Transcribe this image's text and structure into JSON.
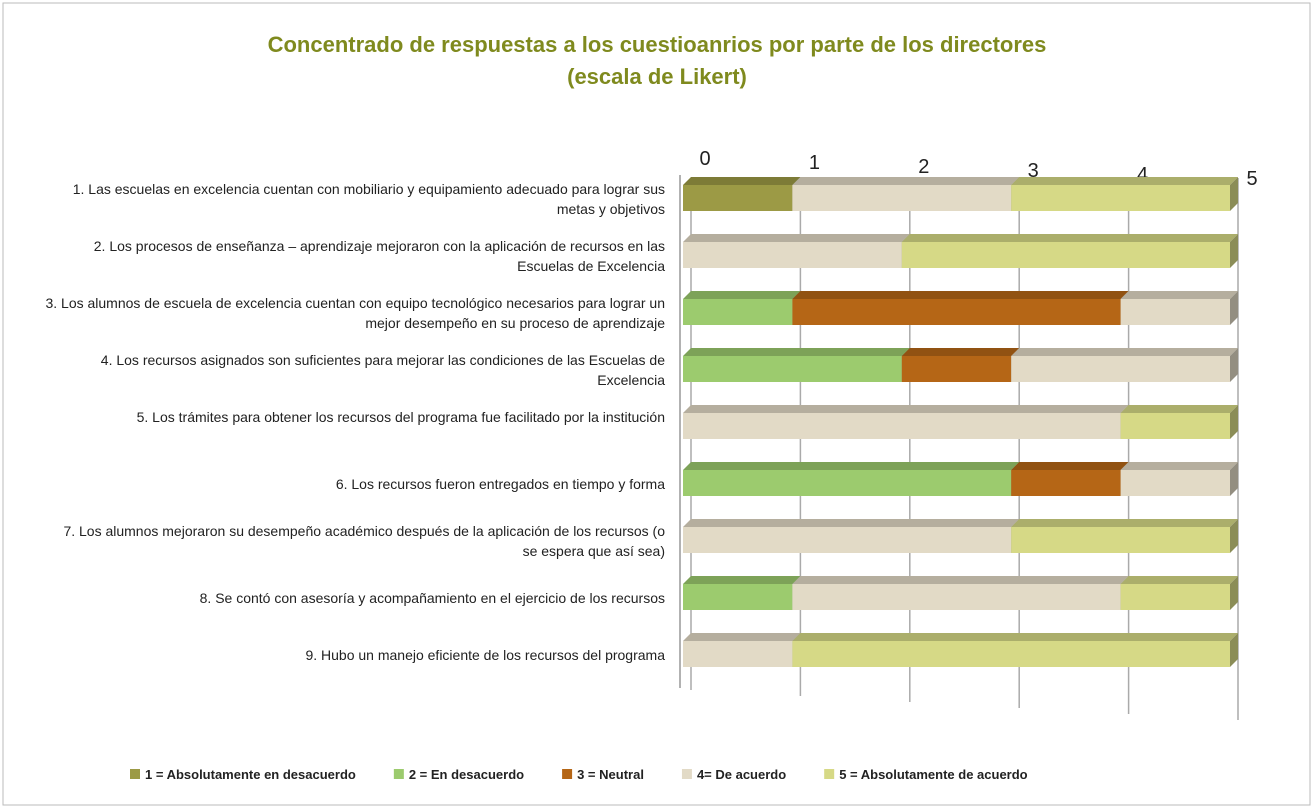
{
  "chart_data": {
    "type": "stacked_bar_3d",
    "title": [
      "Concentrado de respuestas a los cuestioanrios por parte de los directores",
      "(escala de Likert)"
    ],
    "categories": [
      "1. Las escuelas en excelencia cuentan con mobiliario y equipamiento adecuado para lograr sus metas y objetivos",
      "2. Los procesos de enseñanza – aprendizaje mejoraron con la aplicación de recursos en las Escuelas de Excelencia",
      "3. Los alumnos de escuela de excelencia cuentan con equipo tecnológico necesarios para lograr un mejor desempeño en su proceso de aprendizaje",
      "4. Los recursos asignados son suficientes para mejorar las condiciones de las Escuelas de Excelencia",
      "5. Los trámites para obtener los recursos del programa fue facilitado por la institución",
      "6. Los recursos fueron entregados en tiempo y forma",
      "7. Los alumnos mejoraron su desempeño académico después de la aplicación de los recursos (o se espera que así sea)",
      "8. Se contó con asesoría y acompañamiento en el ejercicio de los recursos",
      "9. Hubo un manejo eficiente de los recursos del programa"
    ],
    "series": [
      {
        "name": "1 = Absolutamente en desacuerdo",
        "color": "#9c9a45",
        "values": [
          1,
          0,
          0,
          0,
          0,
          0,
          0,
          0,
          0
        ]
      },
      {
        "name": "2 = En desacuerdo",
        "color": "#9ccb6e",
        "values": [
          0,
          0,
          1,
          2,
          0,
          3,
          0,
          1,
          0
        ]
      },
      {
        "name": "3 = Neutral",
        "color": "#b56616",
        "values": [
          0,
          0,
          3,
          1,
          0,
          1,
          0,
          0,
          0
        ]
      },
      {
        "name": "4= De acuerdo",
        "color": "#e2dac6",
        "values": [
          2,
          2,
          1,
          2,
          4,
          1,
          3,
          3,
          1
        ]
      },
      {
        "name": "5 = Absolutamente de acuerdo",
        "color": "#d6d986",
        "values": [
          2,
          3,
          0,
          0,
          1,
          0,
          2,
          1,
          4
        ]
      }
    ],
    "xlim": [
      0,
      5
    ],
    "xticks": [
      0,
      1,
      2,
      3,
      4,
      5
    ],
    "grid": true,
    "legend": "bottom"
  }
}
